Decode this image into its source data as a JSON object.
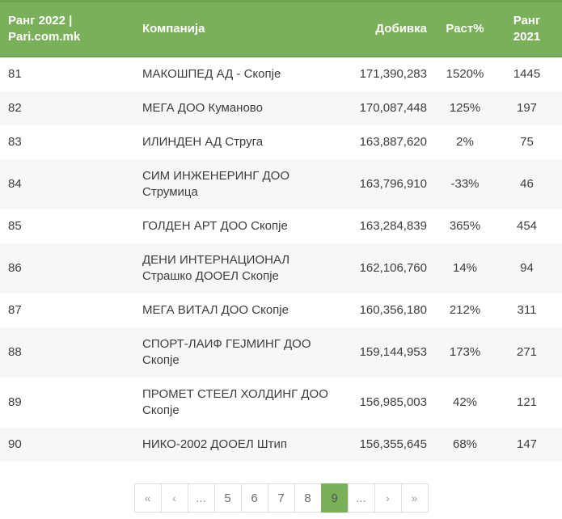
{
  "table": {
    "headers": {
      "rank2022": "Ранг 2022 | Pari.com.mk",
      "company": "Компанија",
      "profit": "Добивка",
      "growth": "Раст%",
      "rank2021": "Ранг 2021"
    },
    "rows": [
      {
        "rank2022": "81",
        "company": "МАКОШПЕД АД - Скопје",
        "profit": "171,390,283",
        "growth": "1520%",
        "rank2021": "1445"
      },
      {
        "rank2022": "82",
        "company": "МЕГА ДОО Куманово",
        "profit": "170,087,448",
        "growth": "125%",
        "rank2021": "197"
      },
      {
        "rank2022": "83",
        "company": "ИЛИНДЕН АД Струга",
        "profit": "163,887,620",
        "growth": "2%",
        "rank2021": "75"
      },
      {
        "rank2022": "84",
        "company": "СИМ ИНЖЕНЕРИНГ ДОО Струмица",
        "profit": "163,796,910",
        "growth": "-33%",
        "rank2021": "46"
      },
      {
        "rank2022": "85",
        "company": "ГОЛДЕН АРТ ДОО Скопје",
        "profit": "163,284,839",
        "growth": "365%",
        "rank2021": "454"
      },
      {
        "rank2022": "86",
        "company": "ДЕНИ ИНТЕРНАЦИОНАЛ Страшко ДООЕЛ Скопје",
        "profit": "162,106,760",
        "growth": "14%",
        "rank2021": "94"
      },
      {
        "rank2022": "87",
        "company": "МЕГА ВИТАЛ ДОО Скопје",
        "profit": "160,356,180",
        "growth": "212%",
        "rank2021": "311"
      },
      {
        "rank2022": "88",
        "company": "СПОРТ-ЛАИФ ГЕЈМИНГ ДОО Скопје",
        "profit": "159,144,953",
        "growth": "173%",
        "rank2021": "271"
      },
      {
        "rank2022": "89",
        "company": "ПРОМЕТ СТЕЕЛ ХОЛДИНГ ДОО Скопје",
        "profit": "156,985,003",
        "growth": "42%",
        "rank2021": "121"
      },
      {
        "rank2022": "90",
        "company": "НИКО-2002 ДООЕЛ Штип",
        "profit": "156,355,645",
        "growth": "68%",
        "rank2021": "147"
      }
    ]
  },
  "pagination": {
    "current_page": "9",
    "items": [
      {
        "label": "«",
        "kind": "first",
        "active": false
      },
      {
        "label": "‹",
        "kind": "prev",
        "active": false
      },
      {
        "label": "...",
        "kind": "ellipsis",
        "active": false
      },
      {
        "label": "5",
        "kind": "page",
        "active": false
      },
      {
        "label": "6",
        "kind": "page",
        "active": false
      },
      {
        "label": "7",
        "kind": "page",
        "active": false
      },
      {
        "label": "8",
        "kind": "page",
        "active": false
      },
      {
        "label": "9",
        "kind": "page",
        "active": true
      },
      {
        "label": "...",
        "kind": "ellipsis",
        "active": false
      },
      {
        "label": "›",
        "kind": "next",
        "active": false
      },
      {
        "label": "»",
        "kind": "last",
        "active": false
      }
    ]
  },
  "colors": {
    "header_green": "#7bb05a",
    "header_border_green": "#6fa04c",
    "stripe_gray": "#f7f7f7",
    "body_text": "#3d3d3d",
    "pagination_border": "#dddddd",
    "pagination_text": "#6e6e6e",
    "active_page_bg": "#7bb05a"
  }
}
